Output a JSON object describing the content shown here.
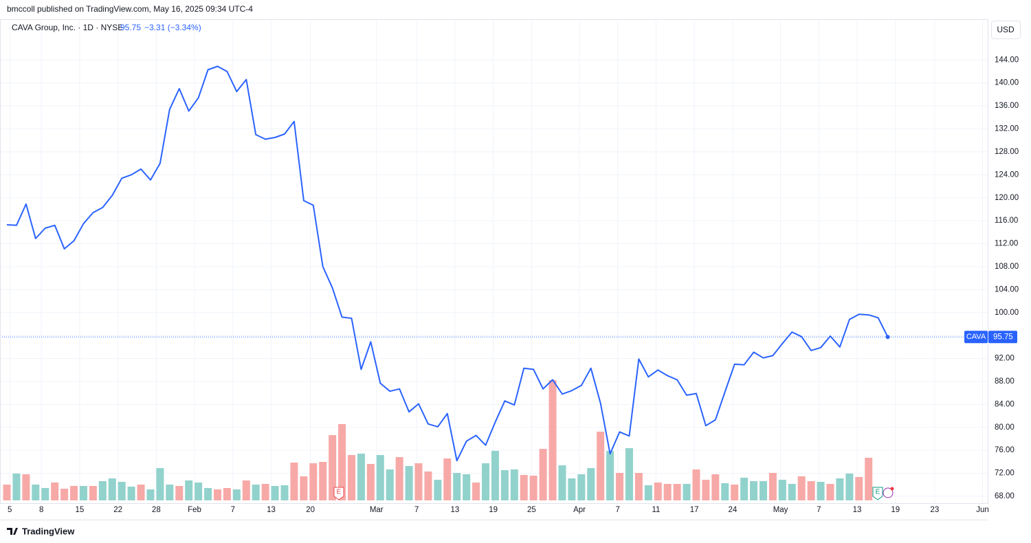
{
  "header": {
    "published": "bmccoll published on TradingView.com, May 16, 2025 09:34 UTC-4"
  },
  "footer": {
    "brand": "TradingView"
  },
  "chart_data": {
    "type": "line",
    "legend": {
      "title": "CAVA Group, Inc. · 1D · NYSE",
      "change": "−3.31 (−3.34%)"
    },
    "currency": "USD",
    "series": [
      {
        "name": "CAVA",
        "color": "#2962ff",
        "values": [
          115.3,
          115.2,
          118.9,
          112.9,
          114.7,
          115.2,
          111.1,
          112.5,
          115.5,
          117.4,
          118.3,
          120.4,
          123.4,
          124.0,
          125.0,
          123.1,
          126.0,
          135.4,
          139.0,
          135.1,
          137.4,
          142.3,
          142.9,
          142.0,
          138.5,
          140.6,
          131.0,
          130.2,
          130.5,
          131.1,
          133.3,
          119.5,
          118.7,
          108.0,
          104.3,
          99.2,
          99.0,
          90.1,
          94.9,
          87.7,
          86.3,
          86.7,
          82.7,
          84.1,
          80.6,
          80.1,
          82.4,
          74.2,
          77.6,
          78.6,
          76.9,
          80.9,
          84.6,
          83.9,
          90.3,
          90.1,
          86.7,
          88.3,
          85.8,
          86.4,
          87.3,
          90.3,
          84.2,
          75.4,
          79.2,
          78.5,
          91.9,
          88.8,
          90.0,
          89.0,
          88.3,
          85.6,
          85.9,
          80.3,
          81.3,
          86.2,
          91.0,
          90.9,
          93.1,
          92.1,
          92.5,
          94.6,
          96.6,
          95.8,
          93.4,
          93.9,
          95.9,
          94.0,
          98.8,
          99.7,
          99.6,
          99.1,
          95.75
        ]
      }
    ],
    "volume": {
      "up_color": "#92d2cc",
      "down_color": "#f7a9a7",
      "values": [
        1.15,
        1.95,
        1.9,
        1.15,
        0.9,
        1.3,
        0.85,
        1.05,
        1.05,
        1.05,
        1.4,
        1.6,
        1.35,
        1.0,
        1.15,
        0.8,
        2.35,
        1.15,
        1.05,
        1.45,
        1.3,
        0.9,
        0.8,
        0.9,
        0.8,
        1.45,
        1.15,
        1.2,
        1.05,
        1.1,
        2.75,
        1.75,
        2.7,
        2.8,
        4.75,
        5.55,
        3.3,
        3.4,
        2.65,
        3.3,
        2.25,
        3.15,
        2.5,
        2.7,
        2.1,
        1.5,
        3.05,
        2.0,
        1.9,
        1.3,
        2.7,
        3.6,
        2.2,
        2.25,
        1.85,
        1.8,
        3.75,
        8.75,
        2.55,
        1.6,
        1.9,
        2.35,
        5.0,
        3.6,
        2.0,
        3.8,
        2.0,
        1.1,
        1.3,
        1.2,
        1.2,
        1.2,
        2.25,
        1.5,
        1.9,
        1.25,
        1.15,
        1.65,
        1.4,
        1.4,
        2.0,
        1.5,
        1.2,
        1.75,
        1.4,
        1.35,
        1.2,
        1.6,
        1.95,
        1.7,
        3.1,
        null,
        null
      ],
      "up": [
        false,
        true,
        false,
        true,
        true,
        false,
        false,
        false,
        true,
        false,
        true,
        true,
        true,
        true,
        false,
        true,
        true,
        true,
        false,
        true,
        true,
        true,
        false,
        false,
        true,
        false,
        true,
        false,
        true,
        true,
        false,
        false,
        false,
        false,
        false,
        false,
        false,
        true,
        false,
        true,
        true,
        false,
        true,
        false,
        false,
        true,
        false,
        true,
        true,
        false,
        true,
        true,
        true,
        true,
        false,
        false,
        false,
        false,
        true,
        true,
        true,
        true,
        false,
        true,
        false,
        true,
        false,
        true,
        false,
        false,
        false,
        true,
        false,
        false,
        false,
        true,
        false,
        true,
        true,
        true,
        false,
        true,
        true,
        false,
        false,
        true,
        false,
        true,
        true,
        false,
        false,
        false,
        false
      ]
    },
    "xlim": [
      -0.72,
      102.44
    ],
    "xticks": [
      {
        "value": 0.3,
        "label": "5"
      },
      {
        "value": 3.6,
        "label": "8"
      },
      {
        "value": 7.6,
        "label": "15"
      },
      {
        "value": 11.6,
        "label": "22"
      },
      {
        "value": 15.6,
        "label": "28"
      },
      {
        "value": 19.6,
        "label": "Feb"
      },
      {
        "value": 23.6,
        "label": "7"
      },
      {
        "value": 27.6,
        "label": "13"
      },
      {
        "value": 31.7,
        "label": "20"
      },
      {
        "value": 38.6,
        "label": "Mar"
      },
      {
        "value": 42.8,
        "label": "7"
      },
      {
        "value": 46.8,
        "label": "13"
      },
      {
        "value": 50.8,
        "label": "19"
      },
      {
        "value": 54.8,
        "label": "25"
      },
      {
        "value": 59.8,
        "label": "Apr"
      },
      {
        "value": 63.8,
        "label": "7"
      },
      {
        "value": 67.8,
        "label": "11"
      },
      {
        "value": 71.8,
        "label": "17"
      },
      {
        "value": 75.8,
        "label": "24"
      },
      {
        "value": 80.8,
        "label": "May"
      },
      {
        "value": 84.8,
        "label": "7"
      },
      {
        "value": 88.8,
        "label": "13"
      },
      {
        "value": 92.8,
        "label": "19"
      },
      {
        "value": 96.9,
        "label": "23"
      },
      {
        "value": 101.9,
        "label": "Jun"
      }
    ],
    "ylim": [
      66.8,
      151.1
    ],
    "yticks": [
      {
        "value": 68,
        "label": "68.00"
      },
      {
        "value": 72,
        "label": "72.00"
      },
      {
        "value": 76,
        "label": "76.00"
      },
      {
        "value": 80,
        "label": "80.00"
      },
      {
        "value": 84,
        "label": "84.00"
      },
      {
        "value": 88,
        "label": "88.00"
      },
      {
        "value": 92,
        "label": "92.00"
      },
      {
        "value": 96,
        "label": "96.00"
      },
      {
        "value": 100,
        "label": "100.00"
      },
      {
        "value": 104,
        "label": "104.00"
      },
      {
        "value": 108,
        "label": "108.00"
      },
      {
        "value": 112,
        "label": "112.00"
      },
      {
        "value": 116,
        "label": "116.00"
      },
      {
        "value": 120,
        "label": "120.00"
      },
      {
        "value": 124,
        "label": "124.00"
      },
      {
        "value": 128,
        "label": "128.00"
      },
      {
        "value": 132,
        "label": "132.00"
      },
      {
        "value": 136,
        "label": "136.00"
      },
      {
        "value": 140,
        "label": "140.00"
      },
      {
        "value": 144,
        "label": "144.00"
      }
    ],
    "grid": true
  }
}
